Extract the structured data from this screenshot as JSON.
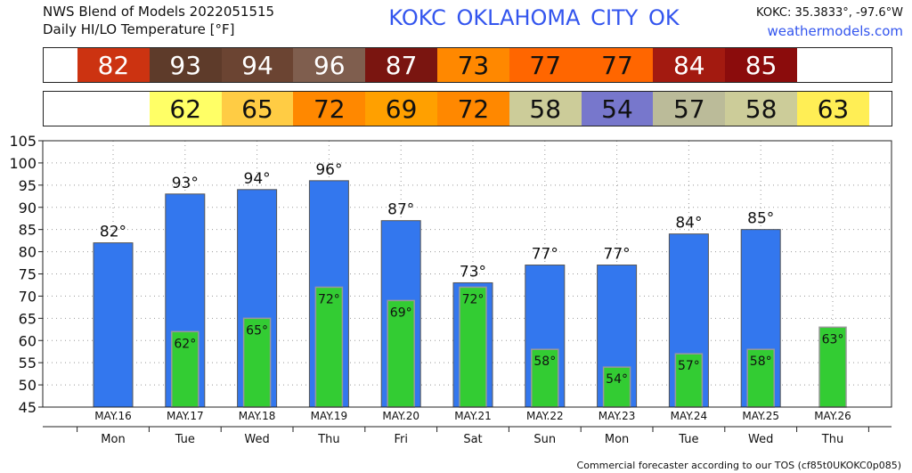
{
  "header": {
    "line1": "NWS Blend of Models 2022051515",
    "line2": "Daily HI/LO Temperature [°F]",
    "station": "KOKC   OKLAHOMA CITY   OK",
    "coords": "KOKC: 35.3833°, -97.6°W",
    "site": "weathermodels.com"
  },
  "footer": "Commercial forecaster according to our TOS (cf85t0UKOKC0p085)",
  "hi_strip": {
    "cells": [
      {
        "label": "82",
        "color": "#cc3311",
        "text_color": "#ffffff"
      },
      {
        "label": "93",
        "color": "#5e3b2a",
        "text_color": "#ffffff"
      },
      {
        "label": "94",
        "color": "#6b4432",
        "text_color": "#ffffff"
      },
      {
        "label": "96",
        "color": "#7f5e4e",
        "text_color": "#ffffff"
      },
      {
        "label": "87",
        "color": "#7a1510",
        "text_color": "#ffffff"
      },
      {
        "label": "73",
        "color": "#ff8800",
        "text_color": "#111111"
      },
      {
        "label": "77",
        "color": "#ff6600",
        "text_color": "#111111"
      },
      {
        "label": "77",
        "color": "#ff6600",
        "text_color": "#111111"
      },
      {
        "label": "84",
        "color": "#a31a10",
        "text_color": "#ffffff"
      },
      {
        "label": "85",
        "color": "#8b0c0c",
        "text_color": "#ffffff"
      },
      {
        "label": "",
        "color": "#ffffff",
        "text_color": "#111111"
      }
    ]
  },
  "lo_strip": {
    "cells": [
      {
        "label": "",
        "color": "#ffffff",
        "text_color": "#111111"
      },
      {
        "label": "62",
        "color": "#ffff66",
        "text_color": "#111111"
      },
      {
        "label": "65",
        "color": "#ffcc44",
        "text_color": "#111111"
      },
      {
        "label": "72",
        "color": "#ff8800",
        "text_color": "#111111"
      },
      {
        "label": "69",
        "color": "#ffa000",
        "text_color": "#111111"
      },
      {
        "label": "72",
        "color": "#ff8800",
        "text_color": "#111111"
      },
      {
        "label": "58",
        "color": "#cccc99",
        "text_color": "#111111"
      },
      {
        "label": "54",
        "color": "#7777cc",
        "text_color": "#111111"
      },
      {
        "label": "57",
        "color": "#bbbb99",
        "text_color": "#111111"
      },
      {
        "label": "58",
        "color": "#cccc99",
        "text_color": "#111111"
      },
      {
        "label": "63",
        "color": "#ffee55",
        "text_color": "#111111"
      }
    ]
  },
  "chart_data": {
    "type": "bar",
    "categories": [
      "MAY.16",
      "MAY.17",
      "MAY.18",
      "MAY.19",
      "MAY.20",
      "MAY.21",
      "MAY.22",
      "MAY.23",
      "MAY.24",
      "MAY.25",
      "MAY.26"
    ],
    "weekdays": [
      "Mon",
      "Tue",
      "Wed",
      "Thu",
      "Fri",
      "Sat",
      "Sun",
      "Mon",
      "Tue",
      "Wed",
      "Thu"
    ],
    "series": [
      {
        "values": [
          82,
          93,
          94,
          96,
          87,
          73,
          77,
          77,
          84,
          85,
          null
        ],
        "color": "#3377ee"
      },
      {
        "values": [
          null,
          62,
          65,
          72,
          69,
          72,
          58,
          54,
          57,
          58,
          63
        ],
        "color": "#33cc33"
      }
    ],
    "hi_labels": [
      "82°",
      "93°",
      "94°",
      "96°",
      "87°",
      "73°",
      "77°",
      "77°",
      "84°",
      "85°",
      ""
    ],
    "lo_labels": [
      "",
      "62°",
      "65°",
      "72°",
      "69°",
      "72°",
      "58°",
      "54°",
      "57°",
      "58°",
      "63°"
    ],
    "ylim": [
      45,
      105
    ],
    "yticks": [
      "45",
      "50",
      "55",
      "60",
      "65",
      "70",
      "75",
      "80",
      "85",
      "90",
      "95",
      "100",
      "105"
    ],
    "grid": true
  }
}
